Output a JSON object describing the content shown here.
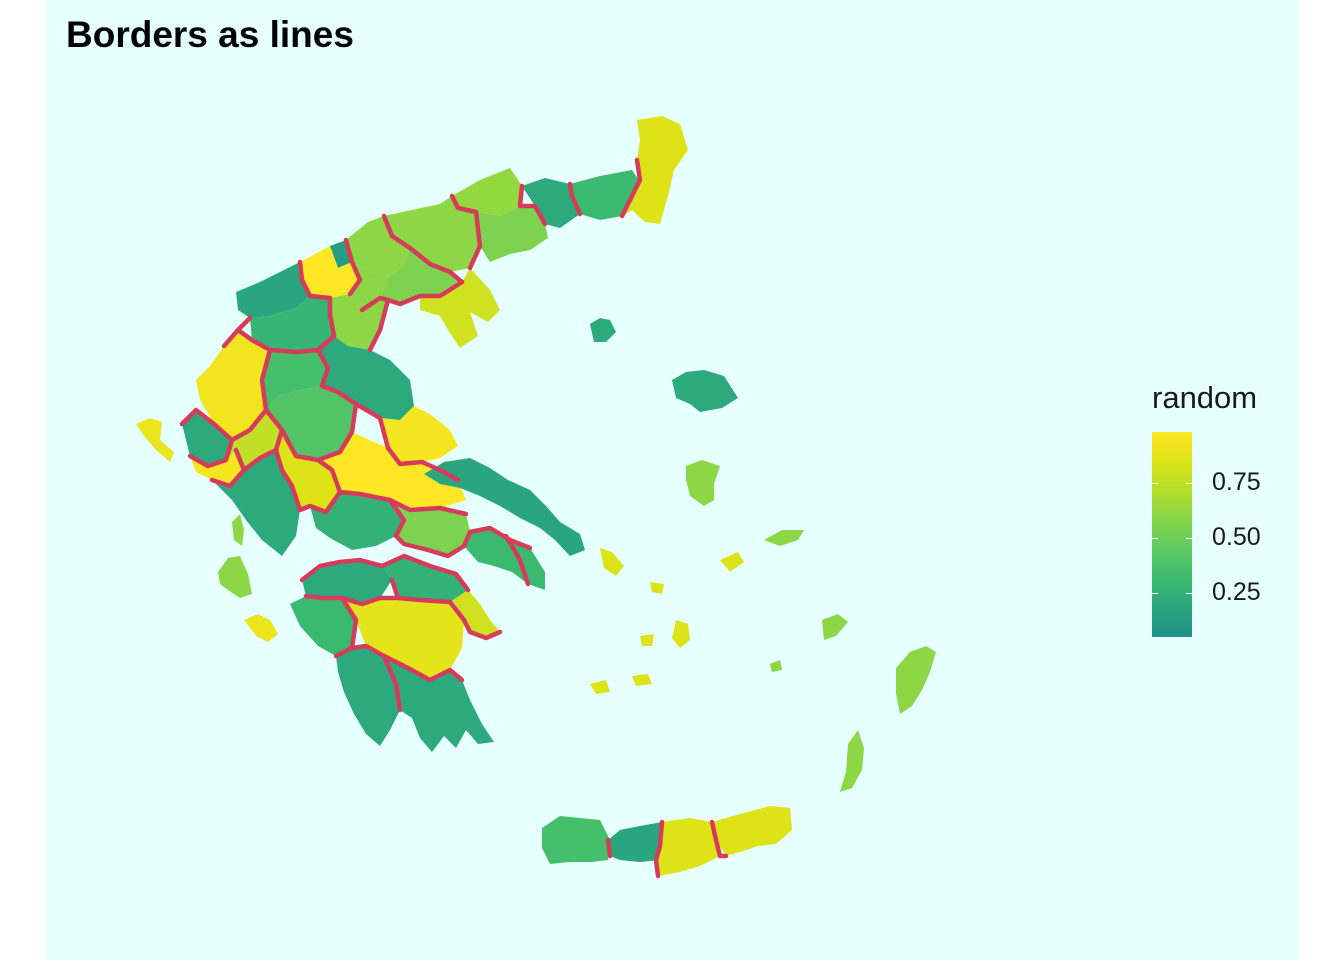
{
  "title": "Borders as lines",
  "legend": {
    "title": "random",
    "ticks": [
      {
        "label": "0.75",
        "value": 0.75
      },
      {
        "label": "0.50",
        "value": 0.5
      },
      {
        "label": "0.25",
        "value": 0.25
      }
    ],
    "range": [
      0.05,
      0.98
    ],
    "palette": [
      "#21908c",
      "#2aa67f",
      "#3cbb6f",
      "#5ec962",
      "#86d549",
      "#b5de2b",
      "#dde318",
      "#fde725"
    ]
  },
  "colors": {
    "background": "#e6ffff",
    "border_line": "#d63c5a"
  },
  "map": {
    "projection": "plain longitude/latitude (Greece)",
    "fill_variable": "random",
    "regions": [
      {
        "area": "Evros",
        "value": 0.85
      },
      {
        "area": "Rhodope",
        "value": 0.3
      },
      {
        "area": "Xanthi",
        "value": 0.2
      },
      {
        "area": "Drama",
        "value": 0.62
      },
      {
        "area": "Kavala",
        "value": 0.55
      },
      {
        "area": "Serres",
        "value": 0.6
      },
      {
        "area": "Kilkis",
        "value": 0.6
      },
      {
        "area": "Pella",
        "value": 0.12
      },
      {
        "area": "Florina",
        "value": 0.98
      },
      {
        "area": "Kastoria",
        "value": 0.18
      },
      {
        "area": "Kozani",
        "value": 0.35
      },
      {
        "area": "Imathia",
        "value": 0.6
      },
      {
        "area": "Thessaloniki",
        "value": 0.55
      },
      {
        "area": "Chalkidiki",
        "value": 0.8
      },
      {
        "area": "Pieria",
        "value": 0.6
      },
      {
        "area": "Grevena",
        "value": 0.28
      },
      {
        "area": "Ioannina",
        "value": 0.93
      },
      {
        "area": "Thesprotia",
        "value": 0.2
      },
      {
        "area": "Preveza",
        "value": 0.95
      },
      {
        "area": "Arta",
        "value": 0.75
      },
      {
        "area": "Trikala",
        "value": 0.35
      },
      {
        "area": "Larisa",
        "value": 0.2
      },
      {
        "area": "Karditsa",
        "value": 0.4
      },
      {
        "area": "Magnesia",
        "value": 0.95
      },
      {
        "area": "Aetolia-Acarnania",
        "value": 0.2
      },
      {
        "area": "Evrytania",
        "value": 0.85
      },
      {
        "area": "Phthiotis",
        "value": 0.98
      },
      {
        "area": "Phocis",
        "value": 0.25
      },
      {
        "area": "Boeotia",
        "value": 0.55
      },
      {
        "area": "Attica",
        "value": 0.3
      },
      {
        "area": "Euboea",
        "value": 0.18
      },
      {
        "area": "Achaea",
        "value": 0.2
      },
      {
        "area": "Corinthia",
        "value": 0.25
      },
      {
        "area": "Elis",
        "value": 0.3
      },
      {
        "area": "Arcadia",
        "value": 0.88
      },
      {
        "area": "Argolis",
        "value": 0.8
      },
      {
        "area": "Messenia",
        "value": 0.2
      },
      {
        "area": "Laconia",
        "value": 0.2
      },
      {
        "area": "Chania",
        "value": 0.35
      },
      {
        "area": "Rethymno",
        "value": 0.18
      },
      {
        "area": "Heraklion",
        "value": 0.85
      },
      {
        "area": "Lasithi",
        "value": 0.85
      },
      {
        "area": "Corfu",
        "value": 0.9
      },
      {
        "area": "Lefkada",
        "value": 0.6
      },
      {
        "area": "Kefalonia",
        "value": 0.6
      },
      {
        "area": "Zakynthos",
        "value": 0.9
      },
      {
        "area": "Lesbos",
        "value": 0.2
      },
      {
        "area": "Chios",
        "value": 0.6
      },
      {
        "area": "Samos",
        "value": 0.6
      },
      {
        "area": "Lemnos",
        "value": 0.2
      },
      {
        "area": "Cyclades",
        "value": 0.85
      },
      {
        "area": "Dodecanese",
        "value": 0.6
      }
    ]
  }
}
